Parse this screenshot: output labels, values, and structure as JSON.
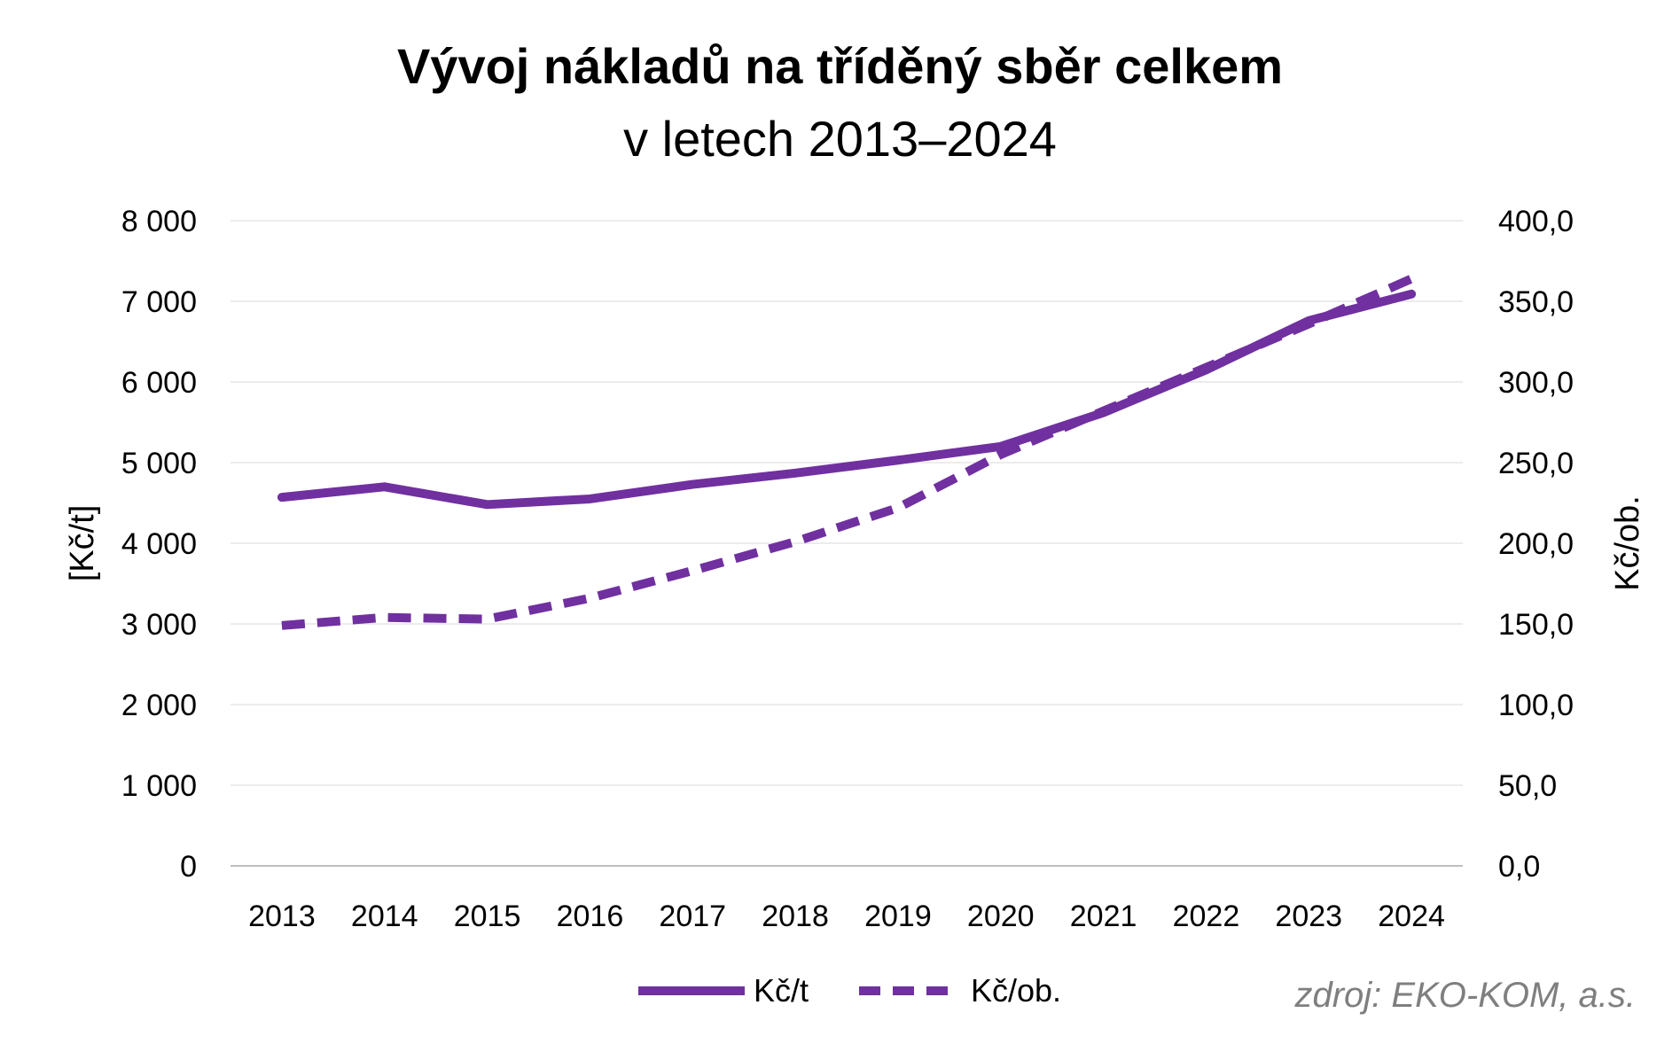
{
  "chart_data": {
    "type": "line",
    "title": "Vývoj nákladů na tříděný sběr celkem",
    "subtitle": "v letech 2013–2024",
    "categories": [
      "2013",
      "2014",
      "2015",
      "2016",
      "2017",
      "2018",
      "2019",
      "2020",
      "2021",
      "2022",
      "2023",
      "2024"
    ],
    "ylabel_left": "[Kč/t]",
    "ylabel_right": "Kč/ob.",
    "ylim_left": [
      0,
      8000
    ],
    "ylim_right": [
      0,
      400
    ],
    "yticks_left": [
      "0",
      "1 000",
      "2 000",
      "3 000",
      "4 000",
      "5 000",
      "6 000",
      "7 000",
      "8 000"
    ],
    "yticks_right": [
      "0,0",
      "50,0",
      "100,0",
      "150,0",
      "200,0",
      "250,0",
      "300,0",
      "350,0",
      "400,0"
    ],
    "grid": true,
    "legend_position": "bottom",
    "series": [
      {
        "name": "Kč/t",
        "axis": "left",
        "style": "solid",
        "color": "#7030a0",
        "values": [
          4570,
          4700,
          4480,
          4550,
          4730,
          4870,
          5030,
          5200,
          5620,
          6150,
          6760,
          7090
        ]
      },
      {
        "name": "Kč/ob.",
        "axis": "right",
        "style": "dashed",
        "color": "#7030a0",
        "values": [
          149,
          154,
          153,
          166,
          183,
          201,
          222,
          255,
          282,
          309,
          336,
          364
        ]
      }
    ],
    "source": "zdroj: EKO-KOM, a.s."
  }
}
